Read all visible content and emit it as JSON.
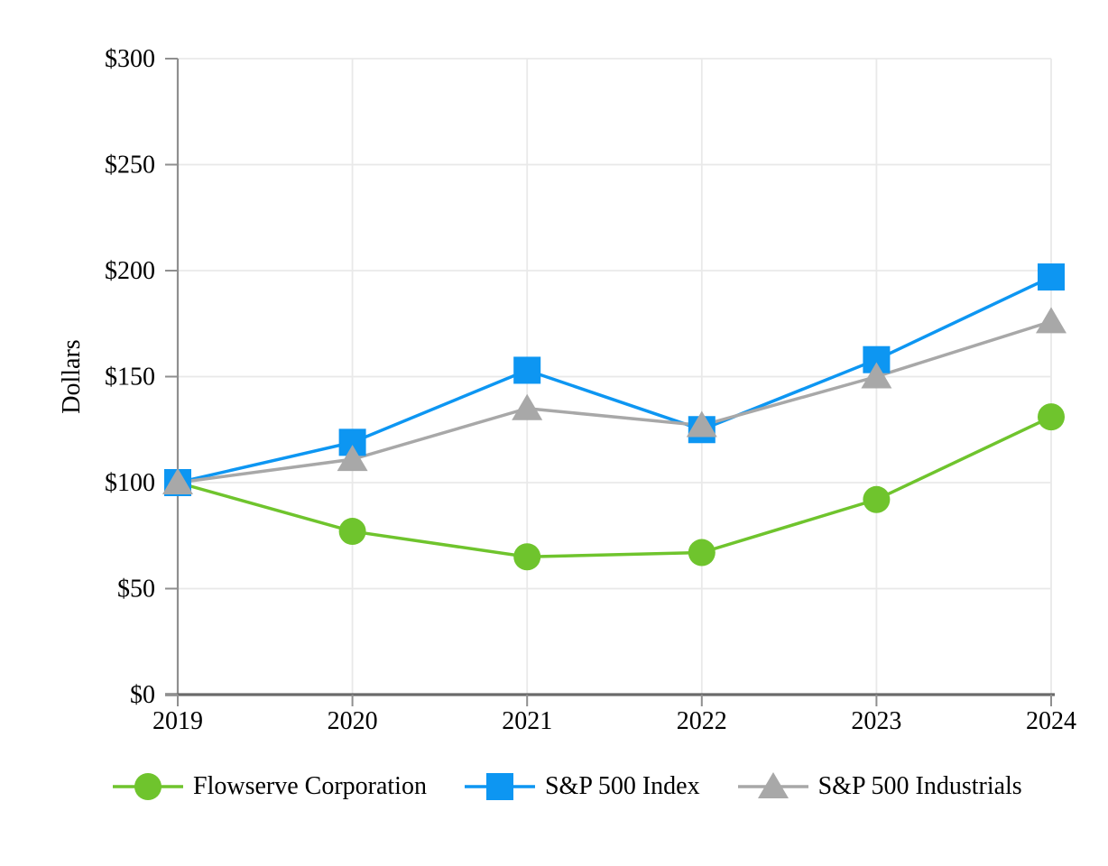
{
  "chart_data": {
    "type": "line",
    "title": "",
    "xlabel": "",
    "ylabel": "Dollars",
    "x": [
      "2019",
      "2020",
      "2021",
      "2022",
      "2023",
      "2024"
    ],
    "ylim": [
      0,
      300
    ],
    "ytick_step": 50,
    "ytick_labels": [
      "$0",
      "$50",
      "$100",
      "$150",
      "$200",
      "$250",
      "$300"
    ],
    "grid": true,
    "legend_position": "bottom",
    "series": [
      {
        "name": "Flowserve Corporation",
        "marker": "circle",
        "color": "#6FC42D",
        "values": [
          100,
          77,
          65,
          67,
          92,
          131
        ]
      },
      {
        "name": "S&P 500 Index",
        "marker": "square",
        "color": "#0D96F2",
        "values": [
          100,
          119,
          153,
          125,
          158,
          197
        ]
      },
      {
        "name": "S&P 500 Industrials",
        "marker": "triangle",
        "color": "#A8A8A8",
        "values": [
          100,
          111,
          135,
          127,
          150,
          176
        ]
      }
    ],
    "axis_colors": {
      "x_axis": "#6A6A6A",
      "y_axis": "#8F8F8F",
      "gridline": "#E9E9E9",
      "tick": "#8F8F8F"
    }
  }
}
